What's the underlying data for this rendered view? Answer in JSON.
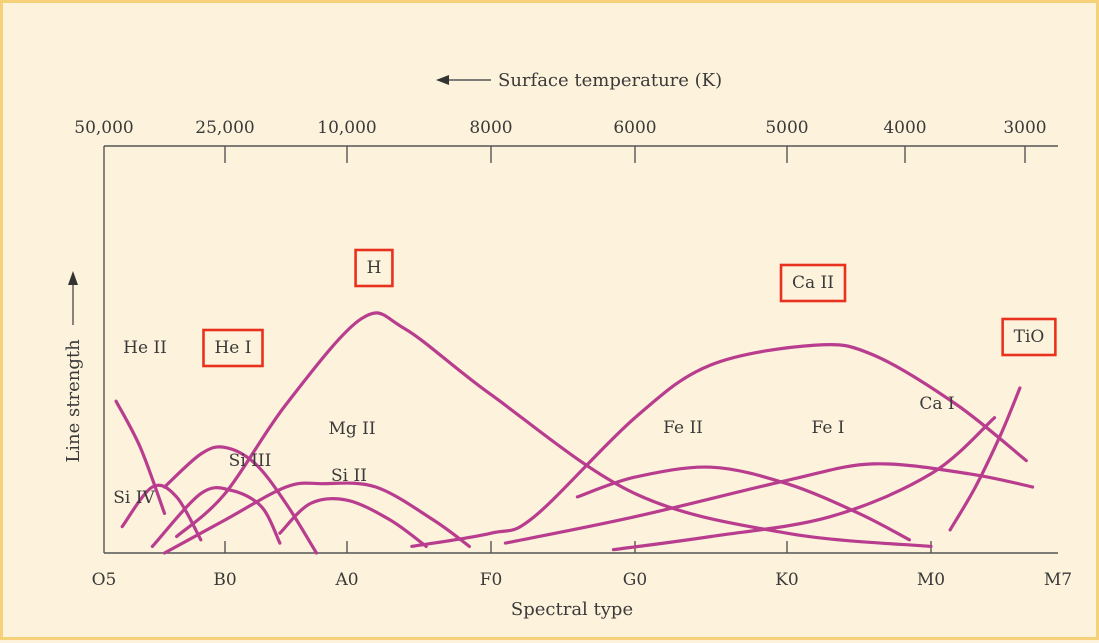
{
  "chart_data": {
    "type": "line",
    "top_axis": {
      "title": "Surface temperature (K)",
      "arrow": "left",
      "ticks": [
        "50,000",
        "25,000",
        "10,000",
        "8000",
        "6000",
        "5000",
        "4000",
        "3000"
      ]
    },
    "x": {
      "title": "Spectral type",
      "ticks": [
        "O5",
        "B0",
        "A0",
        "F0",
        "G0",
        "K0",
        "M0",
        "M7"
      ]
    },
    "y": {
      "title": "Line strength",
      "arrow": "up"
    },
    "series": [
      {
        "name": "He II",
        "points": [
          [
            0.1,
            0.46
          ],
          [
            0.3,
            0.32
          ],
          [
            0.5,
            0.12
          ]
        ]
      },
      {
        "name": "He I",
        "points": [
          [
            0.5,
            0.2
          ],
          [
            0.8,
            0.3
          ],
          [
            1.0,
            0.32
          ],
          [
            1.25,
            0.27
          ],
          [
            1.5,
            0.15
          ],
          [
            1.75,
            0.0
          ]
        ]
      },
      {
        "name": "H",
        "points": [
          [
            0.6,
            0.05
          ],
          [
            1.0,
            0.18
          ],
          [
            1.5,
            0.45
          ],
          [
            2.1,
            0.71
          ],
          [
            2.4,
            0.68
          ],
          [
            3.0,
            0.48
          ],
          [
            4.0,
            0.18
          ],
          [
            5.0,
            0.06
          ],
          [
            6.0,
            0.02
          ]
        ]
      },
      {
        "name": "Si IV",
        "points": [
          [
            0.15,
            0.08
          ],
          [
            0.4,
            0.2
          ],
          [
            0.6,
            0.17
          ],
          [
            0.8,
            0.04
          ]
        ]
      },
      {
        "name": "Si III",
        "points": [
          [
            0.4,
            0.02
          ],
          [
            0.8,
            0.18
          ],
          [
            1.05,
            0.19
          ],
          [
            1.3,
            0.14
          ],
          [
            1.45,
            0.03
          ]
        ]
      },
      {
        "name": "Mg II",
        "points": [
          [
            0.5,
            0.0
          ],
          [
            1.0,
            0.1
          ],
          [
            1.5,
            0.2
          ],
          [
            1.8,
            0.21
          ],
          [
            2.2,
            0.2
          ],
          [
            2.6,
            0.1
          ],
          [
            2.85,
            0.02
          ]
        ]
      },
      {
        "name": "Si II",
        "points": [
          [
            1.45,
            0.06
          ],
          [
            1.7,
            0.15
          ],
          [
            2.0,
            0.16
          ],
          [
            2.3,
            0.1
          ],
          [
            2.55,
            0.02
          ]
        ]
      },
      {
        "name": "Ca II",
        "points": [
          [
            2.45,
            0.02
          ],
          [
            3.0,
            0.06
          ],
          [
            3.3,
            0.11
          ],
          [
            4.0,
            0.41
          ],
          [
            4.5,
            0.57
          ],
          [
            5.2,
            0.63
          ],
          [
            5.6,
            0.6
          ],
          [
            6.2,
            0.45
          ],
          [
            6.75,
            0.28
          ]
        ]
      },
      {
        "name": "Fe II",
        "points": [
          [
            3.6,
            0.17
          ],
          [
            4.0,
            0.23
          ],
          [
            4.5,
            0.26
          ],
          [
            5.0,
            0.21
          ],
          [
            5.5,
            0.12
          ],
          [
            5.85,
            0.04
          ]
        ]
      },
      {
        "name": "Fe I",
        "points": [
          [
            3.1,
            0.03
          ],
          [
            4.0,
            0.11
          ],
          [
            5.0,
            0.22
          ],
          [
            5.6,
            0.27
          ],
          [
            6.3,
            0.24
          ],
          [
            6.8,
            0.2
          ]
        ]
      },
      {
        "name": "Ca I",
        "points": [
          [
            3.85,
            0.01
          ],
          [
            4.5,
            0.05
          ],
          [
            5.3,
            0.11
          ],
          [
            6.0,
            0.24
          ],
          [
            6.5,
            0.41
          ]
        ]
      },
      {
        "name": "TiO",
        "points": [
          [
            6.15,
            0.07
          ],
          [
            6.35,
            0.2
          ],
          [
            6.55,
            0.36
          ],
          [
            6.7,
            0.5
          ]
        ]
      }
    ],
    "labels": [
      "He II",
      "He I",
      "H",
      "Si IV",
      "Si III",
      "Mg II",
      "Si II",
      "Ca II",
      "Fe II",
      "Fe I",
      "Ca I",
      "TiO"
    ],
    "highlighted": [
      "H",
      "He I",
      "Ca II",
      "TiO"
    ],
    "highlight_color": "#e8321e",
    "curve_color": "#b83d8e",
    "ylim": [
      0,
      1
    ],
    "grid": false,
    "legend": "none"
  }
}
